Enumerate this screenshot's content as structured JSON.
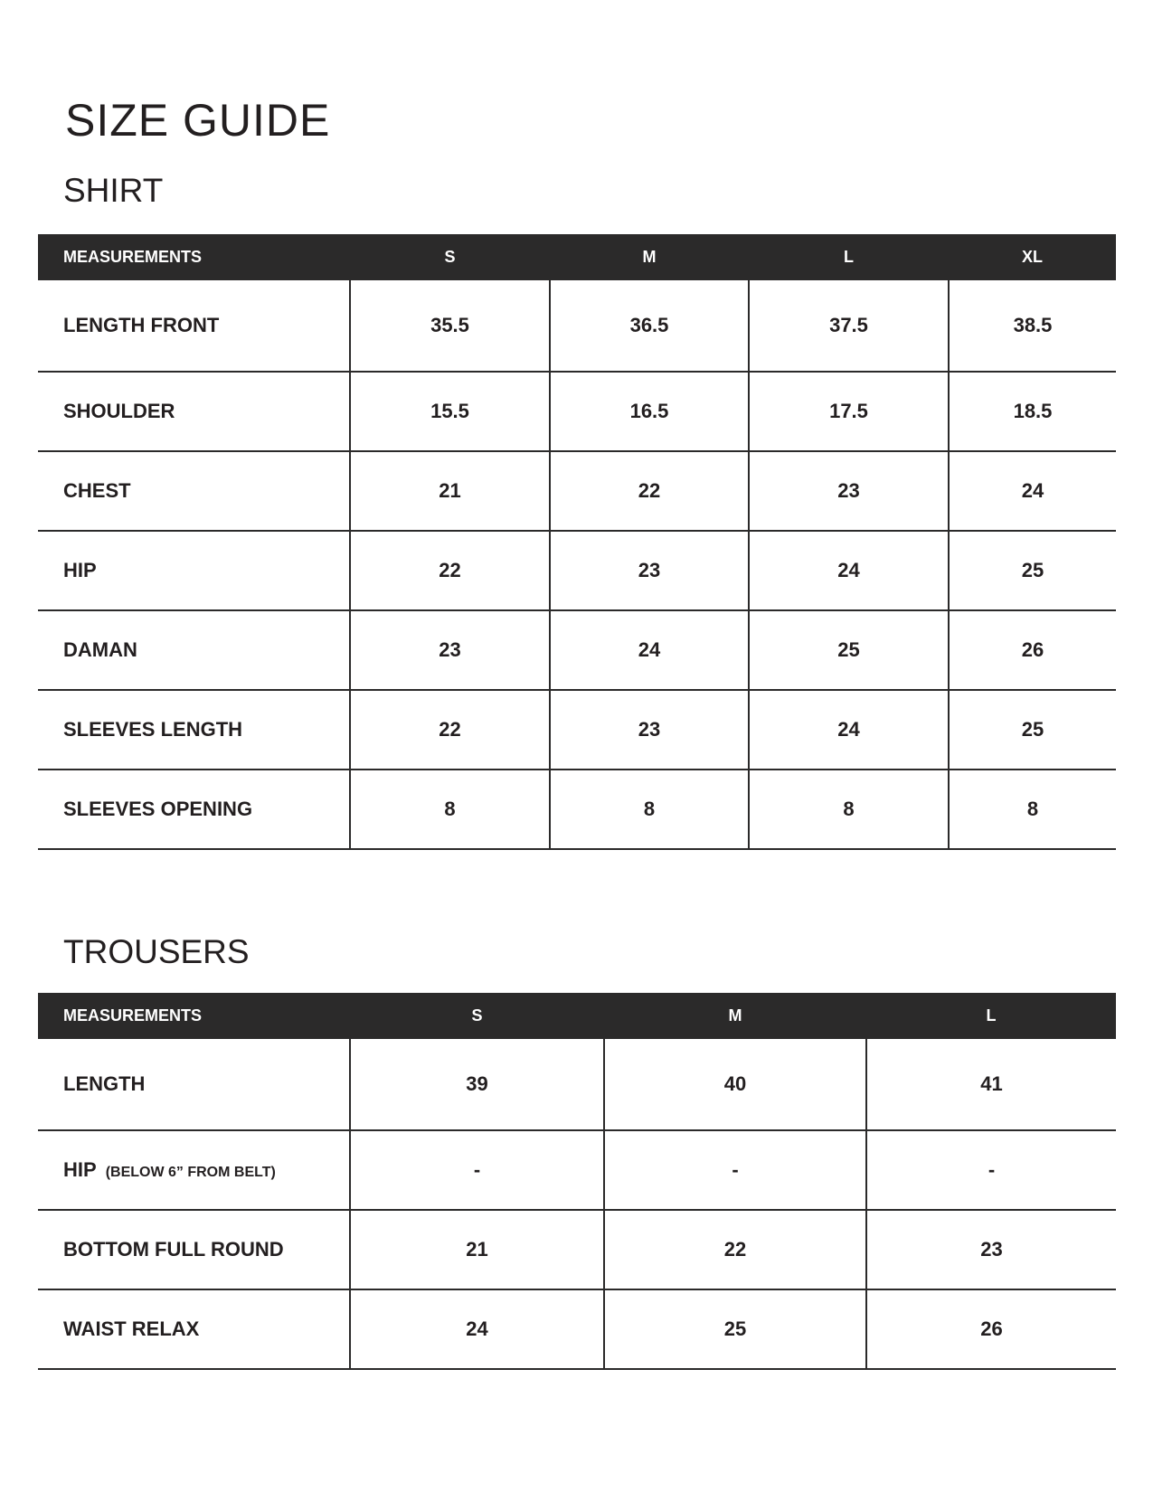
{
  "title": "SIZE GUIDE",
  "shirt": {
    "heading": "SHIRT",
    "columns": [
      "MEASUREMENTS",
      "S",
      "M",
      "L",
      "XL"
    ],
    "rows": [
      {
        "label": "LENGTH FRONT",
        "values": [
          "35.5",
          "36.5",
          "37.5",
          "38.5"
        ]
      },
      {
        "label": "SHOULDER",
        "values": [
          "15.5",
          "16.5",
          "17.5",
          "18.5"
        ]
      },
      {
        "label": "CHEST",
        "values": [
          "21",
          "22",
          "23",
          "24"
        ]
      },
      {
        "label": "HIP",
        "values": [
          "22",
          "23",
          "24",
          "25"
        ]
      },
      {
        "label": "DAMAN",
        "values": [
          "23",
          "24",
          "25",
          "26"
        ]
      },
      {
        "label": "SLEEVES LENGTH",
        "values": [
          "22",
          "23",
          "24",
          "25"
        ]
      },
      {
        "label": "SLEEVES OPENING",
        "values": [
          "8",
          "8",
          "8",
          "8"
        ]
      }
    ]
  },
  "trousers": {
    "heading": "TROUSERS",
    "columns": [
      "MEASUREMENTS",
      "S",
      "M",
      "L"
    ],
    "rows": [
      {
        "label": "LENGTH",
        "note": "",
        "values": [
          "39",
          "40",
          "41"
        ]
      },
      {
        "label": "HIP",
        "note": "(BELOW 6” FROM BELT)",
        "values": [
          "-",
          "-",
          "-"
        ]
      },
      {
        "label": "BOTTOM FULL ROUND",
        "note": "",
        "values": [
          "21",
          "22",
          "23"
        ]
      },
      {
        "label": "WAIST RELAX",
        "note": "",
        "values": [
          "24",
          "25",
          "26"
        ]
      }
    ]
  }
}
